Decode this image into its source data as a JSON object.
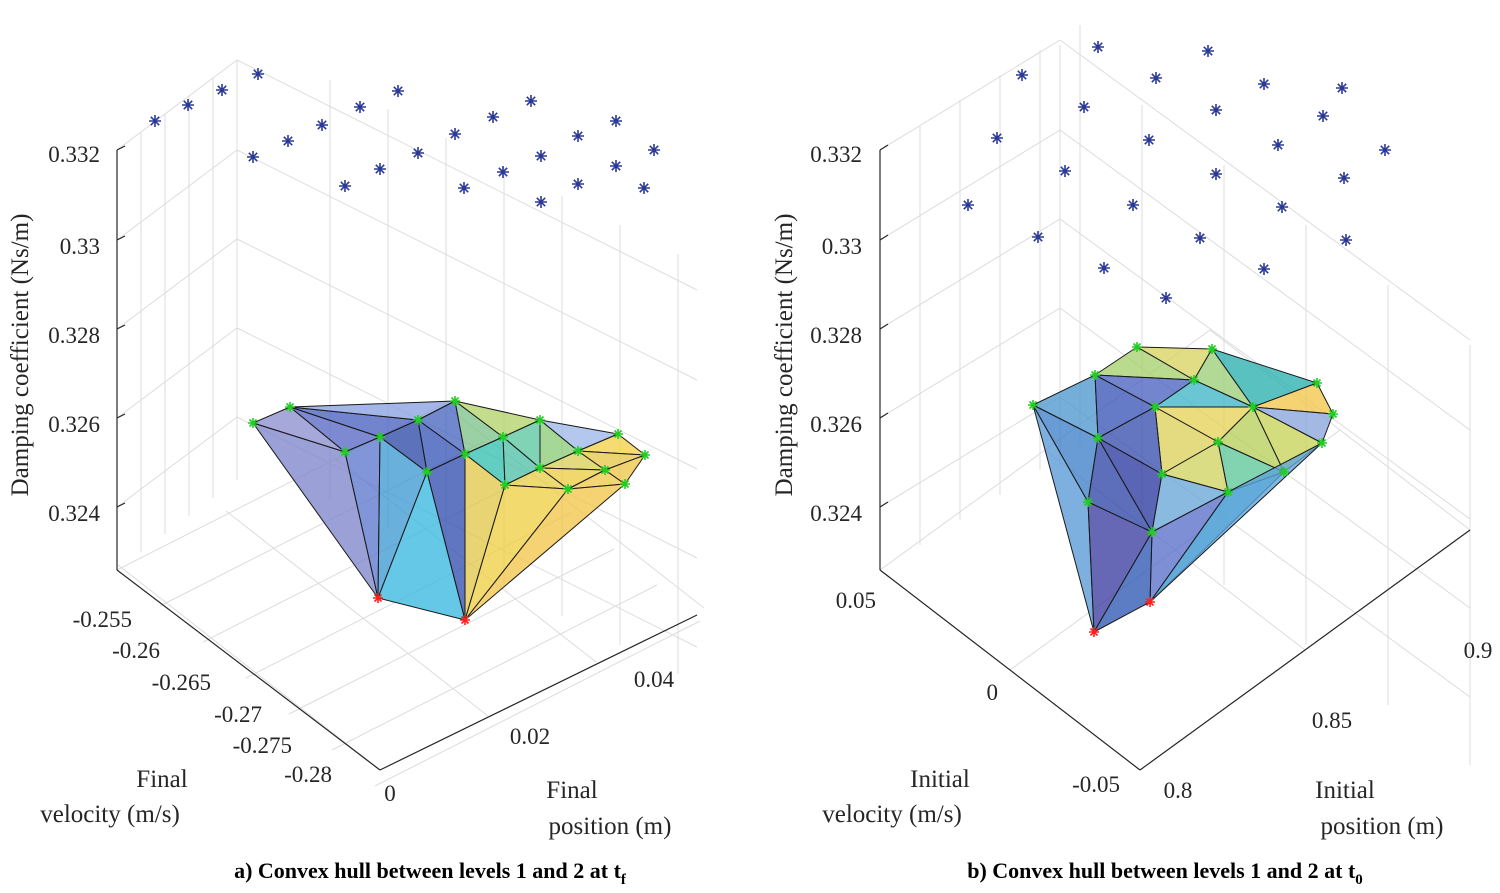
{
  "chart_data": [
    {
      "panel": "a",
      "type": "surface3d",
      "caption_main": "a) Convex hull between levels 1 and 2 at t",
      "caption_sub": "f",
      "zlabel": "Damping coefficient (Ns/m)",
      "xlabel_lines": [
        "Final",
        "velocity (m/s)"
      ],
      "ylabel_lines": [
        "Final",
        "position (m)"
      ],
      "z_ticks": [
        "0.324",
        "0.326",
        "0.328",
        "0.33",
        "0.332"
      ],
      "x_ticks": [
        "-0.255",
        "-0.26",
        "-0.265",
        "-0.27",
        "-0.275",
        "-0.28"
      ],
      "y_ticks": [
        "0",
        "0.02",
        "0.04"
      ],
      "colors": {
        "level_points": "#2b3a98",
        "hull_vertices": "#22cc22",
        "min_points": "#ff2020"
      }
    },
    {
      "panel": "b",
      "type": "surface3d",
      "caption_main": "b) Convex hull between levels 1 and 2 at t",
      "caption_sub": "0",
      "zlabel": "Damping coefficient (Ns/m)",
      "xlabel_lines": [
        "Initial",
        "velocity (m/s)"
      ],
      "ylabel_lines": [
        "Initial",
        "position (m)"
      ],
      "z_ticks": [
        "0.324",
        "0.326",
        "0.328",
        "0.33",
        "0.332"
      ],
      "x_ticks": [
        "0.05",
        "0",
        "-0.05"
      ],
      "y_ticks": [
        "0.8",
        "0.85",
        "0.9"
      ],
      "colors": {
        "level_points": "#2b3a98",
        "hull_vertices": "#22cc22",
        "min_points": "#ff2020"
      }
    }
  ]
}
